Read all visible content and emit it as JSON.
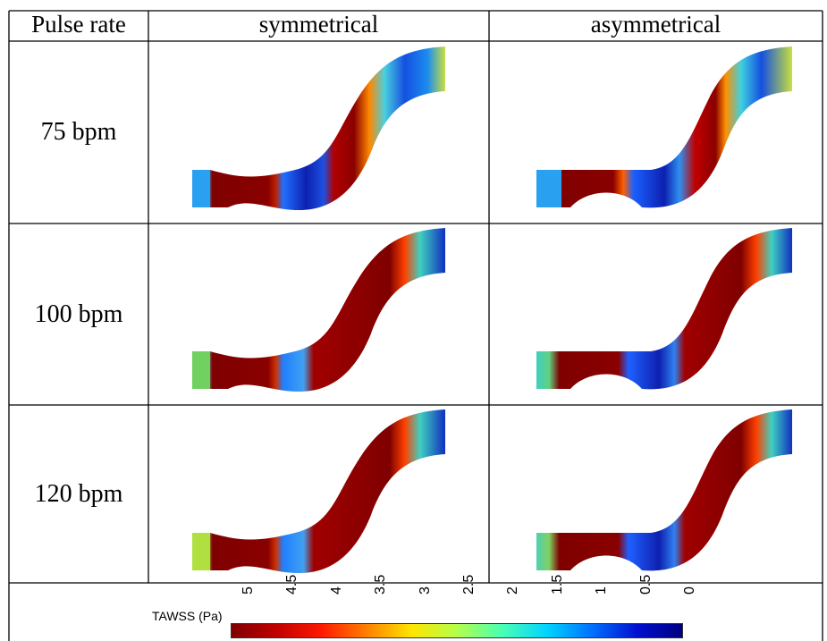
{
  "table": {
    "header": {
      "col0": "Pulse rate",
      "col1": "symmetrical",
      "col2": "asymmetrical"
    },
    "rows": [
      {
        "label": "75 bpm"
      },
      {
        "label": "100 bpm"
      },
      {
        "label": "120 bpm"
      }
    ]
  },
  "colorbar": {
    "title": "TAWSS (Pa)",
    "ticks": [
      "5",
      "4.5",
      "4",
      "3.5",
      "3",
      "2.5",
      "2",
      "1.5",
      "1",
      "0.5",
      "0"
    ],
    "colormap": [
      "#7f0000",
      "#c10000",
      "#ff1a00",
      "#ff8000",
      "#ffe600",
      "#b4ff4a",
      "#4affb4",
      "#00d4ff",
      "#0070ff",
      "#0010d0",
      "#000080"
    ]
  },
  "colors": {
    "dark_red": "#7f0000",
    "red": "#d10000",
    "orange": "#ff8c00",
    "yellow": "#e8ef2a",
    "green": "#7fdc5a",
    "cyan": "#2ad4e8",
    "blue": "#1860ff",
    "dark_blue": "#0a1ea0"
  }
}
